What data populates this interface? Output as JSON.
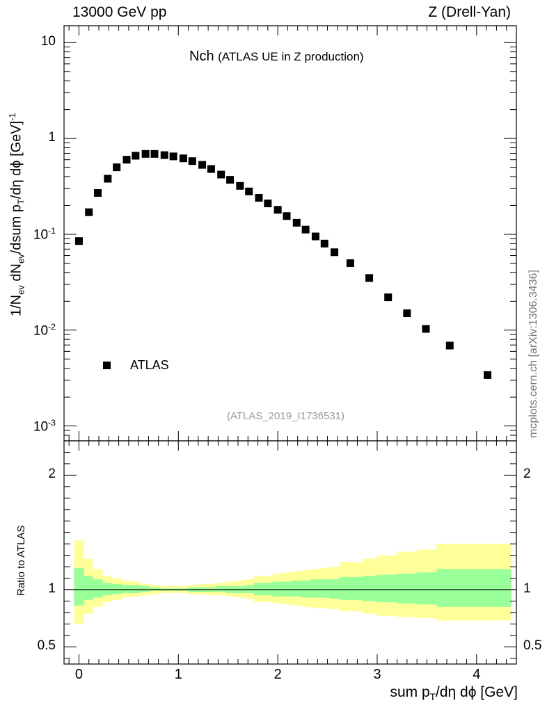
{
  "header": {
    "left": "13000 GeV pp",
    "right": "Z (Drell-Yan)"
  },
  "title": {
    "main": "Nch",
    "sub": "(ATLAS UE in Z production)"
  },
  "watermark": "(ATLAS_2019_I1736531)",
  "side_note": "mcplots.cern.ch [arXiv:1306.3436]",
  "labels": {
    "y_pre": "1/N",
    "y_ev1": "ev",
    "y_mid": " dN",
    "y_ev2": "ev",
    "y_mid2": "/dsum p",
    "y_T": "T",
    "y_post": "/dη dϕ  [GeV]",
    "y_exp": "-1",
    "x_pre": "sum p",
    "x_T": "T",
    "x_post": "/dη dϕ [GeV]",
    "ratio_y": "Ratio to ATLAS"
  },
  "colors": {
    "green_band": "#99ff99",
    "yellow_band": "#ffff99",
    "marker": "#000000"
  },
  "chart_data": {
    "type": "scatter",
    "x_range": [
      -0.15,
      4.4
    ],
    "main_panel": {
      "y_scale": "log",
      "y_range": [
        0.0007,
        15
      ],
      "y_ticks": [
        {
          "v": 0.001,
          "base": "10",
          "exp": "-3"
        },
        {
          "v": 0.01,
          "base": "10",
          "exp": "-2"
        },
        {
          "v": 0.1,
          "base": "10",
          "exp": "-1"
        },
        {
          "v": 1,
          "label": "1"
        },
        {
          "v": 10,
          "label": "10"
        }
      ],
      "series": [
        {
          "name": "ATLAS",
          "x": [
            0.0,
            0.1,
            0.19,
            0.29,
            0.38,
            0.48,
            0.57,
            0.67,
            0.76,
            0.86,
            0.95,
            1.05,
            1.14,
            1.24,
            1.33,
            1.43,
            1.52,
            1.62,
            1.71,
            1.81,
            1.9,
            2.0,
            2.09,
            2.19,
            2.28,
            2.38,
            2.47,
            2.57,
            2.73,
            2.92,
            3.11,
            3.3,
            3.49,
            3.73,
            4.11
          ],
          "y": [
            0.085,
            0.17,
            0.27,
            0.38,
            0.5,
            0.6,
            0.66,
            0.69,
            0.69,
            0.67,
            0.65,
            0.62,
            0.58,
            0.53,
            0.48,
            0.42,
            0.37,
            0.32,
            0.28,
            0.24,
            0.21,
            0.18,
            0.155,
            0.132,
            0.112,
            0.095,
            0.08,
            0.065,
            0.05,
            0.035,
            0.022,
            0.015,
            0.0103,
            0.0069,
            0.0034
          ]
        }
      ],
      "legend": "bottom-left"
    },
    "ratio_panel": {
      "y_range": [
        0.35,
        2.3
      ],
      "y_ticks": [
        0.5,
        1,
        2
      ],
      "reference_line": 1,
      "bins": [
        -0.05,
        0.05,
        0.14,
        0.24,
        0.33,
        0.43,
        0.52,
        0.62,
        0.71,
        0.81,
        0.9,
        1.0,
        1.1,
        1.19,
        1.29,
        1.38,
        1.48,
        1.57,
        1.67,
        1.76,
        1.86,
        1.95,
        2.05,
        2.14,
        2.24,
        2.33,
        2.43,
        2.52,
        2.62,
        2.85,
        3.0,
        3.2,
        3.4,
        3.6,
        3.85,
        4.35
      ],
      "green_band": {
        "up": [
          1.19,
          1.12,
          1.09,
          1.06,
          1.05,
          1.04,
          1.04,
          1.03,
          1.02,
          1.01,
          1.01,
          1.01,
          1.02,
          1.02,
          1.02,
          1.03,
          1.03,
          1.03,
          1.04,
          1.06,
          1.06,
          1.07,
          1.07,
          1.08,
          1.08,
          1.09,
          1.09,
          1.09,
          1.11,
          1.12,
          1.13,
          1.14,
          1.15,
          1.18,
          1.18
        ],
        "down": [
          0.86,
          0.91,
          0.93,
          0.95,
          0.96,
          0.97,
          0.97,
          0.98,
          0.99,
          0.99,
          0.99,
          0.99,
          0.98,
          0.98,
          0.98,
          0.98,
          0.97,
          0.97,
          0.97,
          0.95,
          0.95,
          0.94,
          0.94,
          0.94,
          0.93,
          0.93,
          0.93,
          0.92,
          0.91,
          0.9,
          0.89,
          0.88,
          0.87,
          0.85,
          0.85
        ]
      },
      "yellow_band": {
        "up": [
          1.43,
          1.27,
          1.18,
          1.12,
          1.1,
          1.08,
          1.07,
          1.05,
          1.04,
          1.03,
          1.03,
          1.03,
          1.04,
          1.05,
          1.05,
          1.06,
          1.07,
          1.08,
          1.09,
          1.12,
          1.12,
          1.14,
          1.15,
          1.16,
          1.17,
          1.18,
          1.19,
          1.2,
          1.24,
          1.27,
          1.3,
          1.33,
          1.35,
          1.4,
          1.4
        ],
        "down": [
          0.7,
          0.79,
          0.85,
          0.89,
          0.91,
          0.93,
          0.94,
          0.95,
          0.96,
          0.97,
          0.97,
          0.97,
          0.96,
          0.96,
          0.95,
          0.95,
          0.94,
          0.93,
          0.92,
          0.89,
          0.89,
          0.88,
          0.87,
          0.86,
          0.85,
          0.84,
          0.84,
          0.83,
          0.81,
          0.79,
          0.77,
          0.76,
          0.75,
          0.73,
          0.73
        ]
      }
    },
    "x_ticks": [
      0,
      1,
      2,
      3,
      4
    ]
  }
}
